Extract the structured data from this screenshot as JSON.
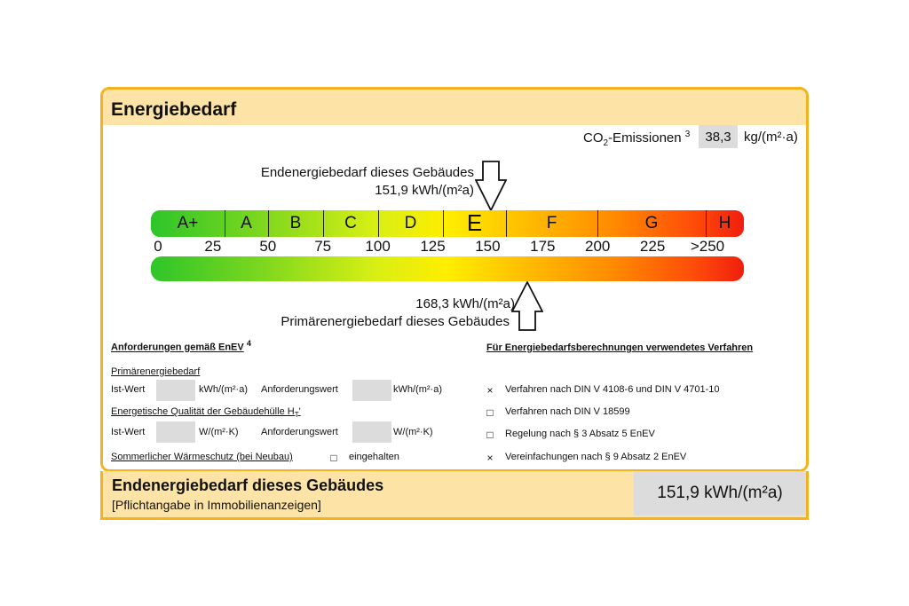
{
  "header": {
    "title": "Energiebedarf"
  },
  "co2": {
    "label_main": "CO",
    "label_sub": "2",
    "label_rest": "-Emissionen",
    "footnote": "3",
    "value": "38,3",
    "unit": "kg/(m²·a)"
  },
  "endenergie_marker": {
    "label": "Endenergiebedarf dieses Gebäudes",
    "value": "151,9 kWh/(m²a)",
    "kwh": 151.9
  },
  "primaer_marker": {
    "label": "Primärenergiebedarf dieses Gebäudes",
    "value": "168,3 kWh/(m²a)",
    "kwh": 168.3
  },
  "scale": {
    "classes": [
      "A+",
      "A",
      "B",
      "C",
      "D",
      "E",
      "F",
      "G",
      "H"
    ],
    "ticks": [
      "0",
      "25",
      "50",
      "75",
      "100",
      "125",
      "150",
      "175",
      "200",
      "225",
      ">250"
    ],
    "current_class": "E"
  },
  "requirements": {
    "heading": "Anforderungen gemäß EnEV",
    "heading_footnote": "4",
    "primaer_heading": "Primärenergiebedarf",
    "ist_wert": "Ist-Wert",
    "anforderungswert": "Anforderungswert",
    "unit_kwh": "kWh/(m²·a)",
    "qualitaet_heading": "Energetische Qualität der Gebäudehülle H",
    "qualitaet_sub": "T",
    "qualitaet_tick": "'",
    "unit_wk": "W/(m²·K)",
    "sommer_heading": "Sommerlicher Wärmeschutz (bei Neubau)",
    "sommer_check": "eingehalten",
    "sommer_checked": false
  },
  "methods": {
    "heading": "Für Energiebedarfsberechnungen verwendetes Verfahren",
    "items": [
      {
        "label": "Verfahren nach DIN V 4108-6 und DIN V 4701-10",
        "checked": true,
        "mark": "×"
      },
      {
        "label": "Verfahren nach DIN V 18599",
        "checked": false,
        "mark": "□"
      },
      {
        "label": "Regelung nach § 3 Absatz 5 EnEV",
        "checked": false,
        "mark": "□"
      },
      {
        "label": "Vereinfachungen nach § 9 Absatz 2 EnEV",
        "checked": true,
        "mark": "×"
      }
    ],
    "unchecked_mark": "□"
  },
  "footer": {
    "title": "Endenergiebedarf dieses Gebäudes",
    "subtitle": "[Pflichtangabe in Immobilienanzeigen]",
    "value": "151,9 kWh/(m²a)"
  },
  "colors": {
    "border": "#f4b31e",
    "header_bg": "#fde4a6",
    "value_box": "#dcdcdc"
  }
}
